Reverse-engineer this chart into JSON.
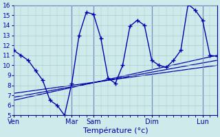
{
  "title": "",
  "xlabel": "Température (°c)",
  "ylabel": "",
  "ylim": [
    5,
    16
  ],
  "xlim": [
    0,
    28
  ],
  "background_color": "#ceeaea",
  "grid_color": "#a8cccc",
  "line_color": "#0000aa",
  "day_labels": [
    "Ven",
    "Mar",
    "Sam",
    "Dim",
    "Lun"
  ],
  "day_positions": [
    0,
    8,
    11,
    19,
    26
  ],
  "series_main": {
    "x": [
      0,
      1,
      2,
      3,
      4,
      5,
      6,
      7,
      8,
      9,
      10,
      11,
      12,
      13,
      14,
      15,
      16,
      17,
      18,
      19,
      20,
      21,
      22,
      23,
      24,
      25,
      26,
      27,
      28
    ],
    "y": [
      11.5,
      11.0,
      10.5,
      9.5,
      8.5,
      6.5,
      6.0,
      5.0,
      8.2,
      13.0,
      15.3,
      15.1,
      12.7,
      8.7,
      8.2,
      10.0,
      13.9,
      14.5,
      14.0,
      10.5,
      10.0,
      9.8,
      10.5,
      11.5,
      16.1,
      15.5,
      14.5,
      11.0,
      10.9
    ]
  },
  "series_trend": [
    {
      "x": [
        0,
        28
      ],
      "y": [
        6.5,
        11.0
      ]
    },
    {
      "x": [
        0,
        28
      ],
      "y": [
        6.8,
        10.5
      ]
    },
    {
      "x": [
        0,
        28
      ],
      "y": [
        7.2,
        10.0
      ]
    }
  ],
  "yticks": [
    5,
    6,
    7,
    8,
    9,
    10,
    11,
    12,
    13,
    14,
    15,
    16
  ],
  "vlines": [
    8,
    11,
    19,
    26
  ]
}
